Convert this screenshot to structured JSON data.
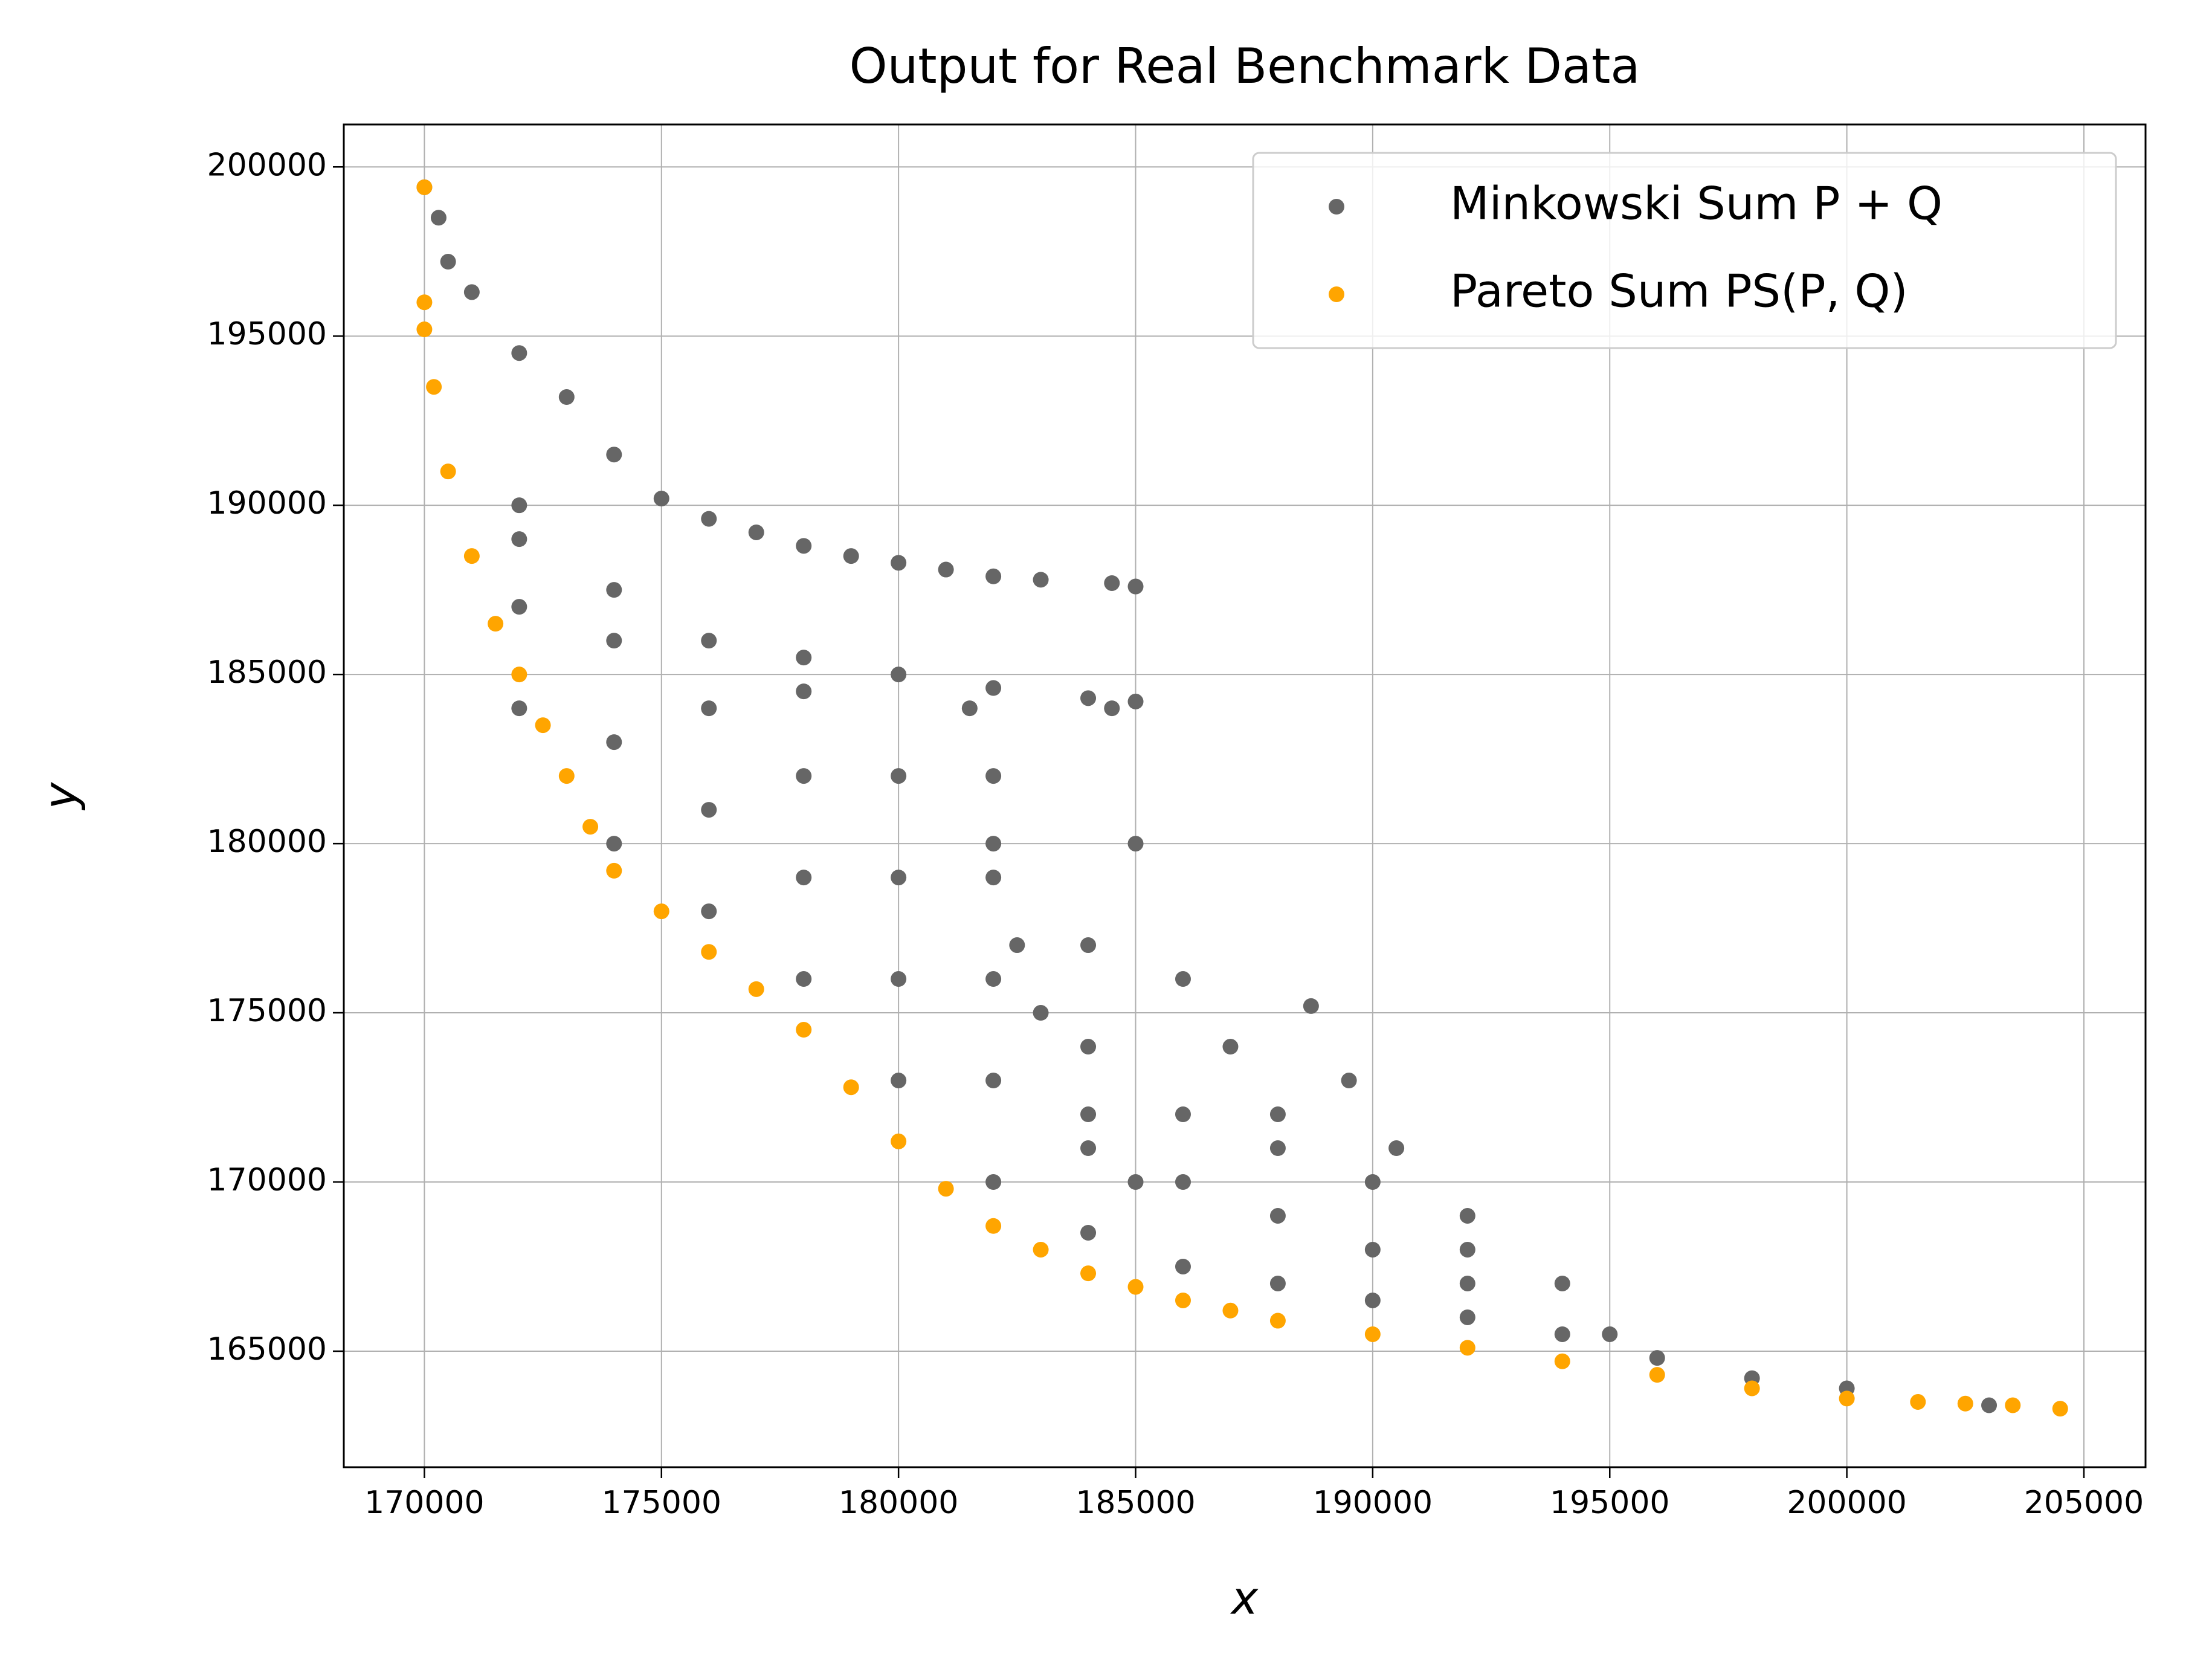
{
  "chart_data": {
    "type": "scatter",
    "title": "Output for Real Benchmark Data",
    "x_label": "x",
    "y_label": "y",
    "xlim": [
      168300,
      206300
    ],
    "ylim": [
      161570,
      201255
    ],
    "xticks": [
      170000,
      175000,
      180000,
      185000,
      190000,
      195000,
      200000,
      205000
    ],
    "yticks": [
      165000,
      170000,
      175000,
      180000,
      185000,
      190000,
      195000,
      200000
    ],
    "grid": true,
    "legend": "upper right",
    "series": [
      {
        "name": "Minkowski Sum P + Q",
        "color": "#666666",
        "x": [
          170000,
          170300,
          170500,
          171000,
          172000,
          173000,
          174000,
          175000,
          176000,
          177000,
          178000,
          179000,
          180000,
          181000,
          182000,
          183000,
          184500,
          185000,
          172000,
          174000,
          176000,
          178000,
          180000,
          182000,
          184000,
          185000,
          181500,
          182000,
          182500,
          183000,
          184000,
          185000,
          184500,
          185000,
          186000,
          187000,
          188000,
          190000,
          192000,
          195000,
          198000,
          203000,
          188700,
          189500,
          190500,
          192000,
          194000,
          172000,
          172000,
          172000,
          174000,
          174000,
          174000,
          176000,
          176000,
          176000,
          178000,
          178000,
          178000,
          178000,
          180000,
          180000,
          180000,
          180000,
          182000,
          182000,
          182000,
          182000,
          182000,
          184000,
          184000,
          184000,
          184000,
          186000,
          186000,
          186000,
          188000,
          188000,
          188000,
          190000,
          190000,
          192000,
          192000,
          194000,
          196000,
          200000
        ],
        "y": [
          199400,
          198500,
          197200,
          196300,
          194500,
          193200,
          191500,
          190200,
          189600,
          189200,
          188800,
          188500,
          188300,
          188100,
          187900,
          187800,
          187700,
          187600,
          190000,
          187500,
          186000,
          185500,
          185000,
          184600,
          184300,
          184200,
          184000,
          180000,
          177000,
          175000,
          172000,
          170000,
          184000,
          180000,
          176000,
          174000,
          172000,
          170000,
          168000,
          165500,
          164200,
          163400,
          175200,
          173000,
          171000,
          169000,
          167000,
          184000,
          187000,
          189000,
          180000,
          183000,
          186000,
          178000,
          181000,
          184000,
          176000,
          179000,
          182000,
          184500,
          173000,
          176000,
          179000,
          182000,
          170000,
          173000,
          176000,
          179000,
          182000,
          168500,
          171000,
          174000,
          177000,
          167500,
          170000,
          172000,
          167000,
          169000,
          171000,
          166500,
          168000,
          166000,
          167000,
          165500,
          164800,
          163900
        ]
      },
      {
        "name": "Pareto Sum PS(P, Q)",
        "color": "#ffa500",
        "x": [
          170000,
          170000,
          170000,
          170200,
          170500,
          171000,
          171500,
          172000,
          172500,
          173000,
          173500,
          174000,
          175000,
          176000,
          177000,
          178000,
          179000,
          180000,
          181000,
          182000,
          183000,
          184000,
          185000,
          186000,
          187000,
          188000,
          190000,
          192000,
          194000,
          196000,
          198000,
          200000,
          201500,
          202500,
          203500,
          204500
        ],
        "y": [
          199400,
          196000,
          195200,
          193500,
          191000,
          188500,
          186500,
          185000,
          183500,
          182000,
          180500,
          179200,
          178000,
          176800,
          175700,
          174500,
          172800,
          171200,
          169800,
          168700,
          168000,
          167300,
          166900,
          166500,
          166200,
          165900,
          165500,
          165100,
          164700,
          164300,
          163900,
          163600,
          163500,
          163450,
          163400,
          163300
        ]
      }
    ]
  }
}
